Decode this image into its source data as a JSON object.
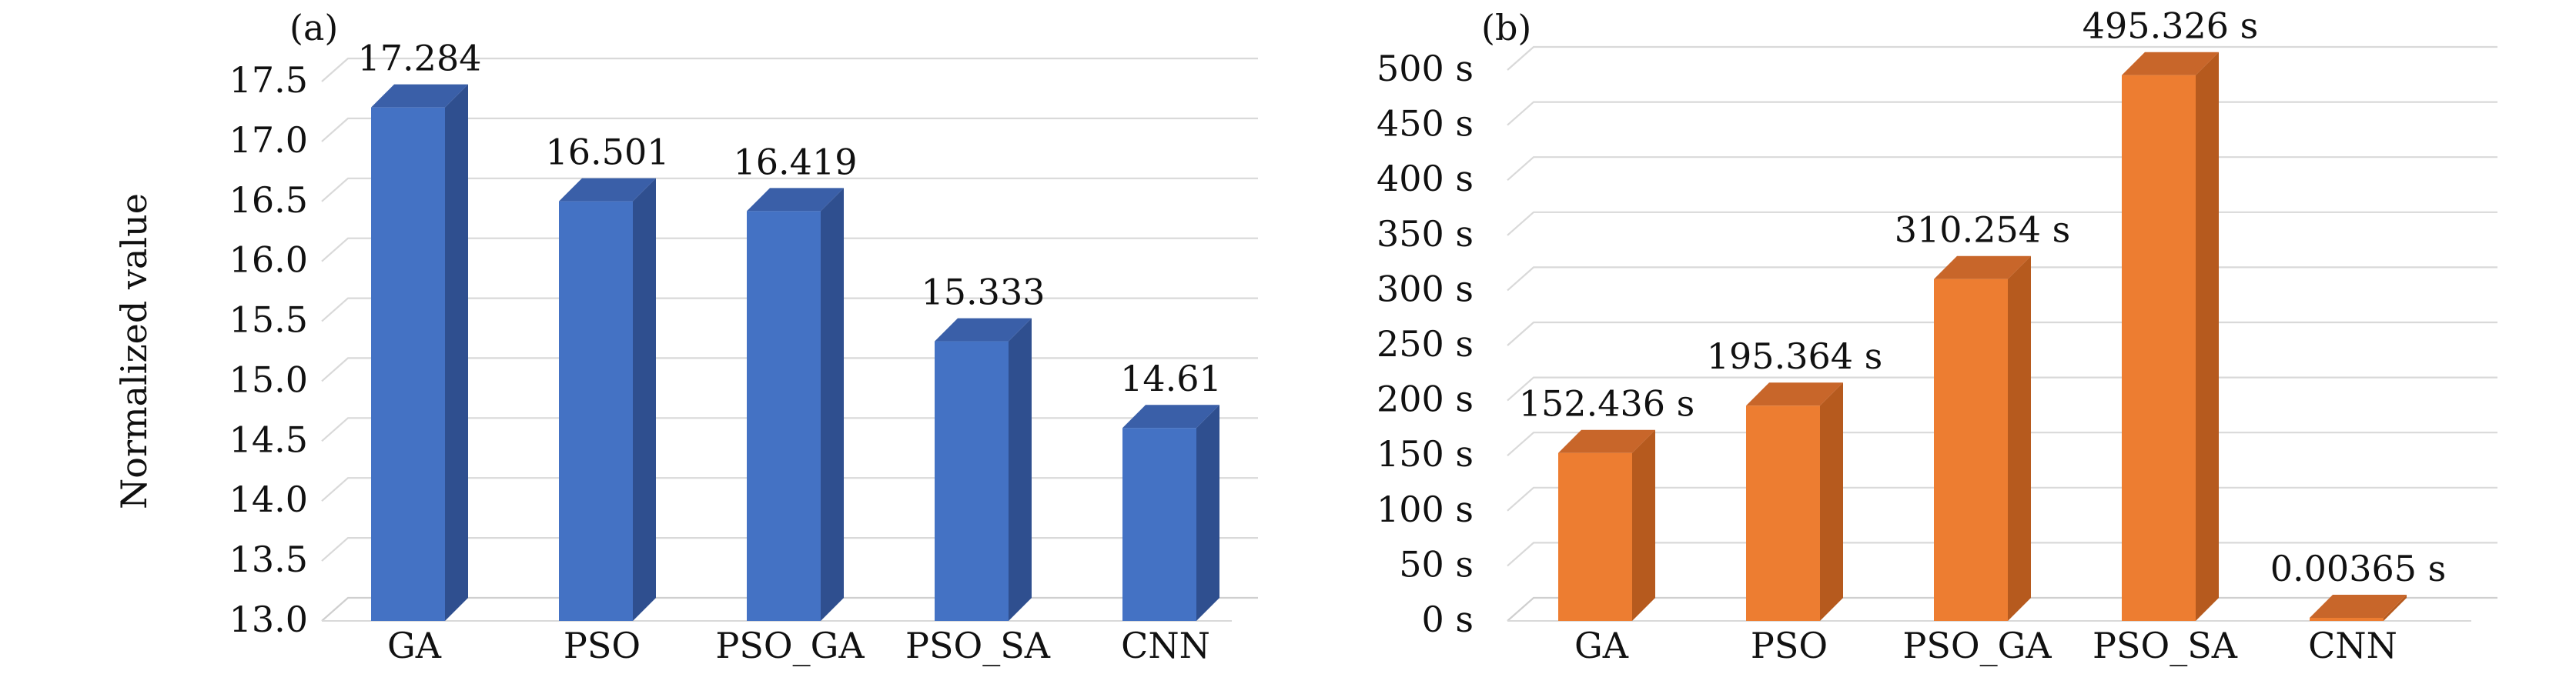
{
  "chart_data": [
    {
      "type": "bar",
      "panel_label": "(a)",
      "title": "",
      "xlabel": "",
      "ylabel": "Normalized value",
      "categories": [
        "GA",
        "PSO",
        "PSO_GA",
        "PSO_SA",
        "CNN"
      ],
      "series": [
        {
          "values": [
            17.284,
            16.501,
            16.419,
            15.333,
            14.61
          ]
        }
      ],
      "data_labels": [
        "17.284",
        "16.501",
        "16.419",
        "15.333",
        "14.61"
      ],
      "ylim": [
        13.0,
        17.5
      ],
      "yticks": [
        13.0,
        13.5,
        14.0,
        14.5,
        15.0,
        15.5,
        16.0,
        16.5,
        17.0,
        17.5
      ],
      "ytick_labels": [
        "13.0",
        "13.5",
        "14.0",
        "14.5",
        "15.0",
        "15.5",
        "16.0",
        "16.5",
        "17.0",
        "17.5"
      ],
      "grid": true,
      "style": "3d-column",
      "colors": {
        "front": "#4472C4",
        "side": "#2F4F8F",
        "top": "#3A5FA8"
      }
    },
    {
      "type": "bar",
      "panel_label": "(b)",
      "title": "",
      "xlabel": "",
      "ylabel": "",
      "categories": [
        "GA",
        "PSO",
        "PSO_GA",
        "PSO_SA",
        "CNN"
      ],
      "series": [
        {
          "values": [
            152.436,
            195.364,
            310.254,
            495.326,
            0.00365
          ]
        }
      ],
      "data_labels": [
        "152.436 s",
        "195.364 s",
        "310.254 s",
        "495.326 s",
        "0.00365 s"
      ],
      "ylim": [
        0,
        500
      ],
      "yticks": [
        0,
        50,
        100,
        150,
        200,
        250,
        300,
        350,
        400,
        450,
        500
      ],
      "ytick_labels": [
        "0 s",
        "50 s",
        "100 s",
        "150 s",
        "200 s",
        "250 s",
        "300 s",
        "350 s",
        "400 s",
        "450 s",
        "500 s"
      ],
      "grid": true,
      "style": "3d-column",
      "colors": {
        "front": "#ED7D31",
        "side": "#B65A1E",
        "top": "#C8662A"
      }
    }
  ]
}
